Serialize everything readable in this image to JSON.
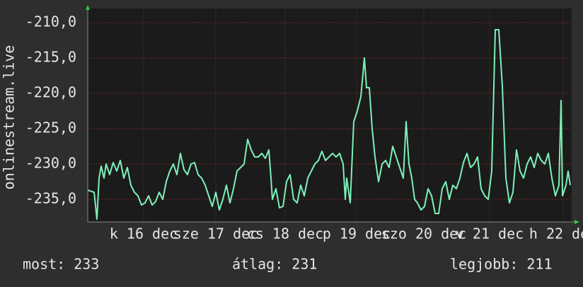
{
  "chart_data": {
    "type": "line",
    "y_label": "onlinestream.live",
    "color": "#7cf0b8",
    "grid": true,
    "xlim": [
      0,
      6.84
    ],
    "xticks": [
      {
        "value": 0.79,
        "label": "k 16 dec"
      },
      {
        "value": 1.81,
        "label": "sze 17 dec"
      },
      {
        "value": 2.79,
        "label": "cs 18 dec"
      },
      {
        "value": 3.8,
        "label": "p 19 dec"
      },
      {
        "value": 4.75,
        "label": "szo 20 dec"
      },
      {
        "value": 5.68,
        "label": "v 21 dec"
      },
      {
        "value": 6.72,
        "label": "h 22 dec"
      }
    ],
    "ylim": [
      -238.2,
      -208
    ],
    "yticks": [
      {
        "value": -210,
        "label": "-210,0"
      },
      {
        "value": -215,
        "label": "-215,0"
      },
      {
        "value": -220,
        "label": "-220,0"
      },
      {
        "value": -225,
        "label": "-225,0"
      },
      {
        "value": -230,
        "label": "-230,0"
      },
      {
        "value": -235,
        "label": "-235,0"
      }
    ],
    "x": [
      0,
      0.09,
      0.13,
      0.16,
      0.19,
      0.23,
      0.26,
      0.31,
      0.36,
      0.41,
      0.46,
      0.51,
      0.56,
      0.61,
      0.66,
      0.71,
      0.76,
      0.81,
      0.86,
      0.91,
      0.96,
      1.01,
      1.06,
      1.11,
      1.16,
      1.21,
      1.26,
      1.31,
      1.36,
      1.41,
      1.46,
      1.51,
      1.56,
      1.61,
      1.66,
      1.71,
      1.76,
      1.81,
      1.86,
      1.91,
      1.96,
      2.01,
      2.06,
      2.11,
      2.16,
      2.21,
      2.26,
      2.31,
      2.36,
      2.41,
      2.46,
      2.51,
      2.56,
      2.59,
      2.61,
      2.66,
      2.71,
      2.76,
      2.81,
      2.86,
      2.91,
      2.96,
      3.01,
      3.06,
      3.11,
      3.16,
      3.21,
      3.26,
      3.31,
      3.36,
      3.41,
      3.46,
      3.51,
      3.56,
      3.61,
      3.64,
      3.66,
      3.71,
      3.76,
      3.81,
      3.86,
      3.91,
      3.94,
      3.98,
      4.02,
      4.06,
      4.11,
      4.16,
      4.21,
      4.26,
      4.31,
      4.36,
      4.41,
      4.46,
      4.5,
      4.54,
      4.58,
      4.62,
      4.66,
      4.71,
      4.76,
      4.81,
      4.86,
      4.91,
      4.96,
      5.01,
      5.06,
      5.11,
      5.16,
      5.21,
      5.26,
      5.31,
      5.36,
      5.41,
      5.46,
      5.51,
      5.56,
      5.61,
      5.66,
      5.71,
      5.76,
      5.81,
      5.86,
      5.91,
      5.96,
      6.01,
      6.06,
      6.11,
      6.16,
      6.21,
      6.26,
      6.31,
      6.36,
      6.41,
      6.46,
      6.51,
      6.56,
      6.61,
      6.66,
      6.69,
      6.71,
      6.76,
      6.79,
      6.82
    ],
    "values": [
      -233.7,
      -234,
      -237.8,
      -232,
      -230.3,
      -232,
      -230,
      -231.5,
      -229.8,
      -231,
      -229.5,
      -232,
      -230.5,
      -233,
      -234,
      -234.5,
      -235.8,
      -235.5,
      -234.5,
      -235.8,
      -235.3,
      -234,
      -235,
      -232.5,
      -231,
      -230,
      -231.5,
      -228.5,
      -230.8,
      -231.5,
      -230,
      -229.8,
      -231.5,
      -232,
      -233,
      -234.5,
      -236,
      -234,
      -236.5,
      -235,
      -233,
      -235.5,
      -233.5,
      -231,
      -230.5,
      -230,
      -226.5,
      -228,
      -229,
      -229,
      -228.5,
      -229.2,
      -228,
      -232,
      -235,
      -233.5,
      -236.2,
      -236,
      -232.5,
      -231.5,
      -235,
      -235.5,
      -233,
      -234.5,
      -232,
      -231,
      -230,
      -229.5,
      -228.2,
      -229.5,
      -229,
      -228.5,
      -229,
      -228.5,
      -230,
      -235,
      -232,
      -235.5,
      -224,
      -222.5,
      -220.5,
      -215,
      -219.2,
      -219.2,
      -225,
      -229,
      -232.5,
      -230,
      -229.5,
      -230.5,
      -227.5,
      -229,
      -230.5,
      -232,
      -224,
      -230,
      -232,
      -235,
      -235.5,
      -236.5,
      -236,
      -233.5,
      -234.5,
      -237,
      -237,
      -233.5,
      -232.5,
      -235,
      -233,
      -233.5,
      -232,
      -229.8,
      -228.5,
      -230.5,
      -230,
      -229,
      -233.5,
      -234.5,
      -235,
      -231,
      -211,
      -211,
      -219,
      -232,
      -235.5,
      -234,
      -228,
      -231,
      -232,
      -230,
      -229,
      -230.5,
      -228.5,
      -229.5,
      -230,
      -228.5,
      -232,
      -234.5,
      -233,
      -221,
      -234.5,
      -233,
      -231,
      -233
    ],
    "footer": [
      "most: 233",
      "átlag: 231",
      "legjobb: 211"
    ]
  }
}
